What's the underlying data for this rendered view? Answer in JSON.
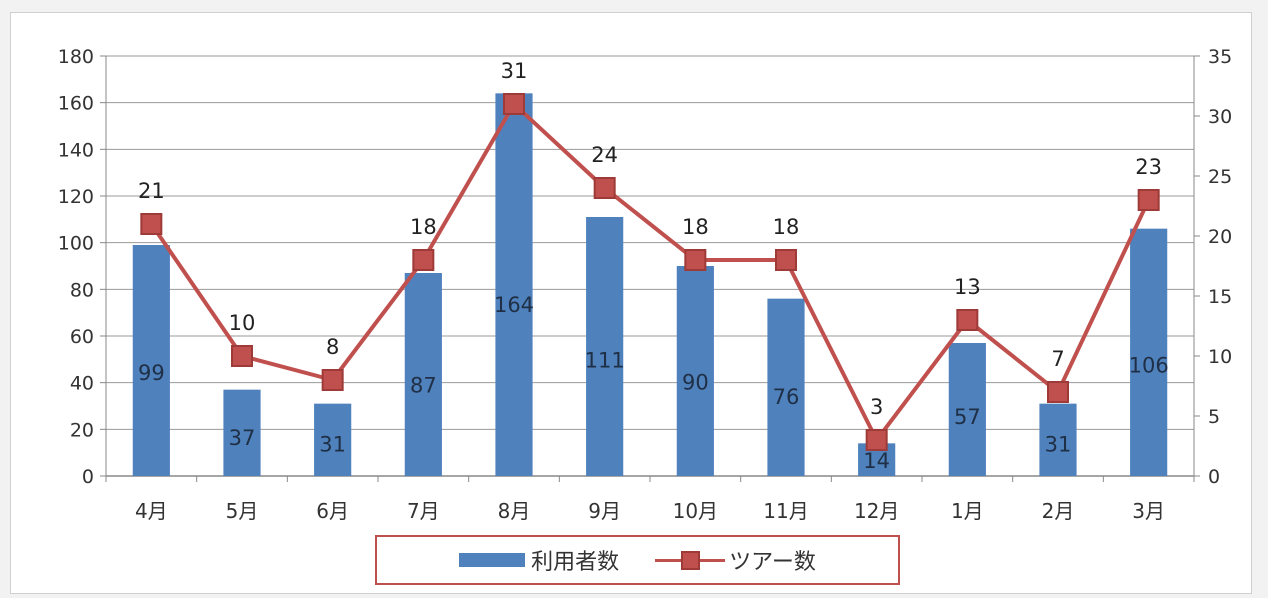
{
  "chart_data": {
    "type": "bar",
    "categories": [
      "4月",
      "5月",
      "6月",
      "7月",
      "8月",
      "9月",
      "10月",
      "11月",
      "12月",
      "1月",
      "2月",
      "3月"
    ],
    "series": [
      {
        "name": "利用者数",
        "type": "bar",
        "axis": "left",
        "color": "#4f81bd",
        "values": [
          99,
          37,
          31,
          87,
          164,
          111,
          90,
          76,
          14,
          57,
          31,
          106
        ]
      },
      {
        "name": "ツアー数",
        "type": "line",
        "axis": "right",
        "color": "#c0504d",
        "marker": "square",
        "values": [
          21,
          10,
          8,
          18,
          31,
          24,
          18,
          18,
          3,
          13,
          7,
          23
        ]
      }
    ],
    "y_left": {
      "range": [
        0,
        180
      ],
      "ticks": [
        "0",
        "20",
        "40",
        "60",
        "80",
        "100",
        "120",
        "140",
        "160",
        "180"
      ]
    },
    "y_right": {
      "range": [
        0,
        35
      ],
      "ticks": [
        "0",
        "5",
        "10",
        "15",
        "20",
        "25",
        "30",
        "35"
      ]
    },
    "grid": true,
    "legend_position": "bottom"
  }
}
